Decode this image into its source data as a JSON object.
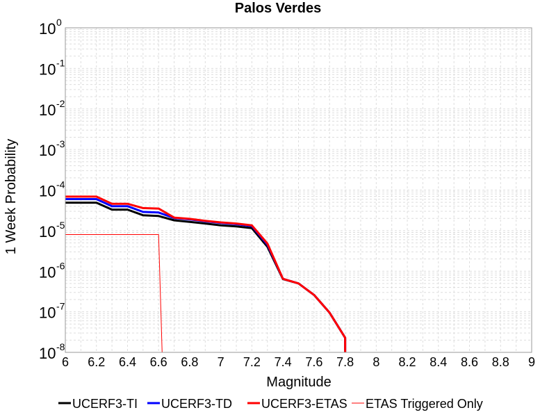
{
  "chart_data": {
    "type": "line",
    "title": "Palos Verdes",
    "xlabel": "Magnitude",
    "ylabel": "1 Week Probability",
    "xlim": [
      6,
      9
    ],
    "ylim": [
      1e-08,
      1
    ],
    "yscale": "log",
    "grid": true,
    "legend_position": "bottom",
    "x_ticks": [
      "6",
      "6.2",
      "6.4",
      "6.6",
      "6.8",
      "7",
      "7.2",
      "7.4",
      "7.6",
      "7.8",
      "8",
      "8.2",
      "8.4",
      "8.6",
      "8.8",
      "9"
    ],
    "y_ticks": [
      {
        "base": "10",
        "exp": "0"
      },
      {
        "base": "10",
        "exp": "-1"
      },
      {
        "base": "10",
        "exp": "-2"
      },
      {
        "base": "10",
        "exp": "-3"
      },
      {
        "base": "10",
        "exp": "-4"
      },
      {
        "base": "10",
        "exp": "-5"
      },
      {
        "base": "10",
        "exp": "-6"
      },
      {
        "base": "10",
        "exp": "-7"
      },
      {
        "base": "10",
        "exp": "-8"
      }
    ],
    "series": [
      {
        "name": "UCERF3-TI",
        "color": "#000000",
        "line_width": 3,
        "x": [
          6.0,
          6.2,
          6.3,
          6.4,
          6.5,
          6.6,
          6.7,
          6.8,
          6.9,
          7.0,
          7.1,
          7.2,
          7.3,
          7.4,
          7.5,
          7.6,
          7.7,
          7.8,
          7.8
        ],
        "y": [
          4.9e-05,
          4.9e-05,
          3.3e-05,
          3.3e-05,
          2.4e-05,
          2.3e-05,
          1.8e-05,
          1.65e-05,
          1.5e-05,
          1.35e-05,
          1.27e-05,
          1.15e-05,
          4e-06,
          6.4e-07,
          5e-07,
          2.6e-07,
          9.5e-08,
          2.3e-08,
          5e-09
        ]
      },
      {
        "name": "UCERF3-TD",
        "color": "#0000ff",
        "line_width": 3,
        "x": [
          6.0,
          6.2,
          6.3,
          6.4,
          6.5,
          6.6,
          6.7,
          6.8,
          6.9,
          7.0,
          7.1,
          7.2,
          7.3,
          7.4,
          7.5,
          7.6,
          7.7,
          7.8,
          7.8
        ],
        "y": [
          6e-05,
          6e-05,
          4e-05,
          4e-05,
          2.9e-05,
          2.8e-05,
          2.05e-05,
          1.9e-05,
          1.7e-05,
          1.55e-05,
          1.45e-05,
          1.3e-05,
          4.5e-06,
          6.5e-07,
          5e-07,
          2.6e-07,
          9.5e-08,
          2.3e-08,
          5e-09
        ]
      },
      {
        "name": "UCERF3-ETAS",
        "color": "#ff0000",
        "line_width": 3,
        "x": [
          6.0,
          6.2,
          6.3,
          6.4,
          6.5,
          6.6,
          6.7,
          6.8,
          6.9,
          7.0,
          7.1,
          7.2,
          7.3,
          7.4,
          7.5,
          7.6,
          7.7,
          7.8,
          7.8
        ],
        "y": [
          6.9e-05,
          6.9e-05,
          4.6e-05,
          4.6e-05,
          3.6e-05,
          3.5e-05,
          2.1e-05,
          1.95e-05,
          1.75e-05,
          1.6e-05,
          1.5e-05,
          1.35e-05,
          4.8e-06,
          6.5e-07,
          5e-07,
          2.6e-07,
          9.5e-08,
          2.3e-08,
          5e-09
        ]
      },
      {
        "name": "ETAS Triggered Only",
        "color": "#ff0000",
        "line_width": 1,
        "x": [
          6.0,
          6.6,
          6.625
        ],
        "y": [
          8e-06,
          8e-06,
          5e-09
        ]
      }
    ]
  }
}
